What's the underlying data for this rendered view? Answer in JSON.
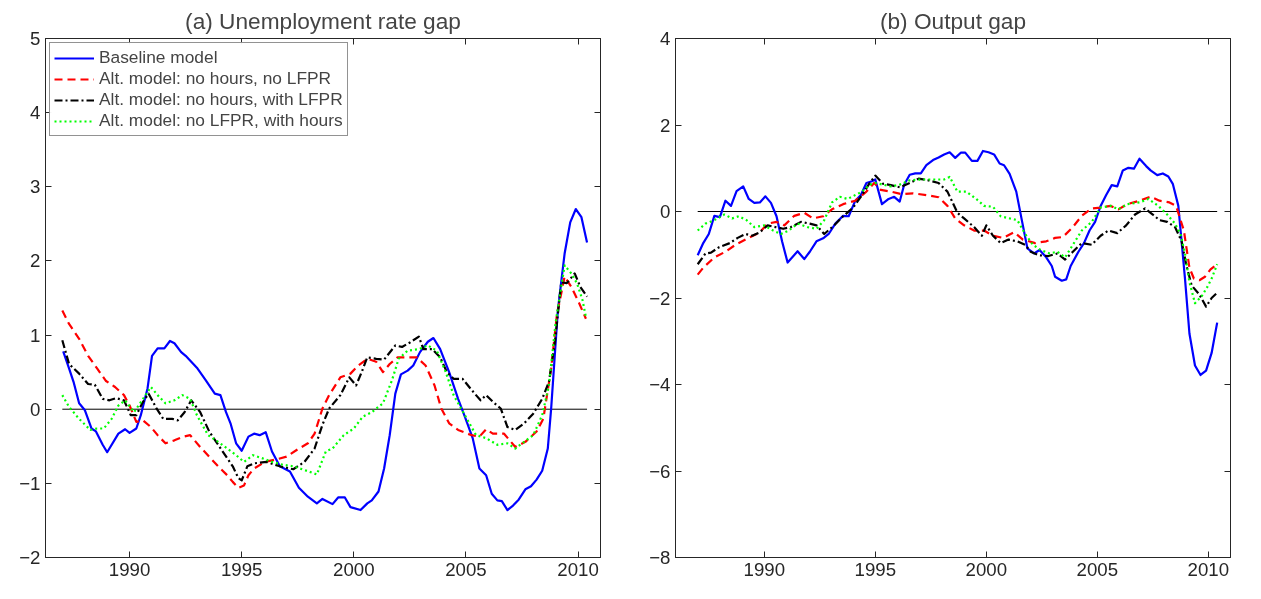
{
  "chart_data": [
    {
      "type": "line",
      "title": "(a) Unemployment rate gap",
      "xlim": [
        1986.25,
        2011
      ],
      "xticks": [
        1990,
        1995,
        2000,
        2005,
        2010
      ],
      "ylim": [
        -2,
        5
      ],
      "yticks": [
        -2,
        -1,
        0,
        1,
        2,
        3,
        4,
        5
      ],
      "grid": false,
      "legend": "top left",
      "ref_lines": [
        {
          "axis": "y",
          "value": 0,
          "color": "#000000"
        }
      ],
      "series": [
        {
          "name": "Baseline model",
          "color": "#0000ff",
          "line_style": "solid",
          "x": [
            1987.04,
            1987.3,
            1987.5,
            1987.75,
            1988.0,
            1988.3,
            1988.5,
            1988.8,
            1989.0,
            1989.5,
            1989.8,
            1990.0,
            1990.3,
            1990.5,
            1990.8,
            1991.0,
            1991.25,
            1991.55,
            1991.8,
            1992.0,
            1992.3,
            1992.5,
            1993.0,
            1993.4,
            1993.8,
            1994.05,
            1994.3,
            1994.5,
            1994.75,
            1995.0,
            1995.3,
            1995.55,
            1995.8,
            1996.07,
            1996.35,
            1996.7,
            1997.15,
            1997.55,
            1997.95,
            1998.35,
            1998.6,
            1999.05,
            1999.3,
            1999.6,
            1999.85,
            2000.3,
            2000.6,
            2000.8,
            2001.1,
            2001.35,
            2001.6,
            2001.85,
            2002.1,
            2002.4,
            2002.65,
            2002.95,
            2003.3,
            2003.55,
            2003.85,
            2004.25,
            2004.65,
            2004.95,
            2005.3,
            2005.6,
            2005.9,
            2006.15,
            2006.4,
            2006.6,
            2006.85,
            2007.1,
            2007.35,
            2007.65,
            2007.9,
            2008.15,
            2008.4,
            2008.65,
            2008.8,
            2009.1,
            2009.4,
            2009.65,
            2009.9,
            2010.15,
            2010.4
          ],
          "values": [
            0.78,
            0.55,
            0.37,
            0.08,
            -0.01,
            -0.26,
            -0.3,
            -0.48,
            -0.58,
            -0.33,
            -0.27,
            -0.32,
            -0.26,
            -0.08,
            0.28,
            0.72,
            0.82,
            0.82,
            0.92,
            0.89,
            0.77,
            0.72,
            0.56,
            0.39,
            0.21,
            0.19,
            -0.04,
            -0.19,
            -0.46,
            -0.56,
            -0.37,
            -0.33,
            -0.35,
            -0.31,
            -0.57,
            -0.77,
            -0.84,
            -1.06,
            -1.18,
            -1.27,
            -1.21,
            -1.28,
            -1.19,
            -1.19,
            -1.32,
            -1.36,
            -1.27,
            -1.23,
            -1.11,
            -0.8,
            -0.35,
            0.21,
            0.47,
            0.52,
            0.59,
            0.77,
            0.91,
            0.96,
            0.81,
            0.5,
            0.14,
            -0.1,
            -0.39,
            -0.8,
            -0.89,
            -1.14,
            -1.23,
            -1.24,
            -1.36,
            -1.3,
            -1.22,
            -1.08,
            -1.04,
            -0.95,
            -0.83,
            -0.53,
            0.01,
            1.34,
            2.1,
            2.52,
            2.7,
            2.59,
            2.25
          ]
        },
        {
          "name": "Alt. model: no hours, no LFPR",
          "color": "#ff0000",
          "line_style": "dashed",
          "x": [
            1987.0,
            1987.3,
            1987.75,
            1988.15,
            1988.55,
            1988.95,
            1989.35,
            1989.75,
            1990.0,
            1990.3,
            1990.6,
            1990.95,
            1991.25,
            1991.6,
            1992.0,
            1992.4,
            1992.7,
            1993.15,
            1993.55,
            1993.95,
            1994.35,
            1994.6,
            1994.85,
            1995.1,
            1995.3,
            1995.55,
            1996.05,
            1996.5,
            1997.0,
            1997.45,
            1997.95,
            1998.25,
            1998.6,
            1998.9,
            1999.4,
            1999.85,
            2000.2,
            2000.6,
            2001.0,
            2001.3,
            2001.6,
            2001.95,
            2002.4,
            2002.8,
            2003.2,
            2003.6,
            2003.9,
            2004.25,
            2004.65,
            2005.25,
            2005.6,
            2005.9,
            2006.2,
            2006.7,
            2007.2,
            2007.65,
            2008.15,
            2008.45,
            2008.8,
            2009.05,
            2009.4,
            2009.7,
            2010.05,
            2010.35
          ],
          "values": [
            1.33,
            1.15,
            0.95,
            0.72,
            0.55,
            0.38,
            0.3,
            0.19,
            0.05,
            -0.17,
            -0.15,
            -0.24,
            -0.35,
            -0.46,
            -0.42,
            -0.37,
            -0.35,
            -0.51,
            -0.64,
            -0.77,
            -0.89,
            -0.98,
            -1.06,
            -1.03,
            -0.89,
            -0.8,
            -0.71,
            -0.68,
            -0.64,
            -0.55,
            -0.46,
            -0.33,
            0.01,
            0.19,
            0.43,
            0.48,
            0.59,
            0.68,
            0.64,
            0.5,
            0.61,
            0.7,
            0.7,
            0.7,
            0.59,
            0.32,
            0.01,
            -0.19,
            -0.28,
            -0.35,
            -0.37,
            -0.27,
            -0.33,
            -0.33,
            -0.51,
            -0.44,
            -0.3,
            -0.13,
            0.55,
            1.26,
            1.79,
            1.65,
            1.43,
            1.22
          ]
        },
        {
          "name": "Alt. model: no hours, with LFPR",
          "color": "#000000",
          "line_style": "dashdot",
          "x": [
            1987.0,
            1987.3,
            1987.75,
            1988.15,
            1988.45,
            1988.8,
            1989.1,
            1989.4,
            1989.75,
            1990.05,
            1990.3,
            1990.6,
            1990.85,
            1991.2,
            1991.5,
            1991.9,
            1992.15,
            1992.45,
            1992.75,
            1993.15,
            1993.55,
            1993.95,
            1994.35,
            1994.6,
            1994.85,
            1995.0,
            1995.25,
            1995.55,
            1996.1,
            1996.7,
            1997.3,
            1997.8,
            1998.25,
            1998.6,
            1998.9,
            1999.4,
            1999.8,
            2000.1,
            2000.35,
            2000.6,
            2001.0,
            2001.35,
            2001.85,
            2002.15,
            2002.5,
            2002.9,
            2003.1,
            2003.5,
            2003.85,
            2004.15,
            2004.45,
            2004.85,
            2005.25,
            2005.65,
            2005.9,
            2006.2,
            2006.55,
            2006.85,
            2007.2,
            2007.6,
            2008.0,
            2008.4,
            2008.7,
            2008.95,
            2009.25,
            2009.5,
            2009.85,
            2010.1,
            2010.4
          ],
          "values": [
            0.93,
            0.61,
            0.48,
            0.34,
            0.33,
            0.14,
            0.12,
            0.15,
            0.12,
            -0.08,
            -0.08,
            0.1,
            0.21,
            0.01,
            -0.13,
            -0.13,
            -0.15,
            -0.04,
            0.12,
            -0.04,
            -0.3,
            -0.48,
            -0.66,
            -0.77,
            -0.93,
            -0.96,
            -0.77,
            -0.73,
            -0.71,
            -0.77,
            -0.81,
            -0.71,
            -0.53,
            -0.21,
            0.01,
            0.19,
            0.43,
            0.32,
            0.5,
            0.7,
            0.68,
            0.67,
            0.86,
            0.84,
            0.9,
            0.98,
            0.81,
            0.81,
            0.7,
            0.5,
            0.41,
            0.41,
            0.26,
            0.12,
            0.19,
            0.1,
            0.01,
            -0.24,
            -0.28,
            -0.19,
            -0.06,
            0.14,
            0.37,
            0.86,
            1.71,
            1.7,
            1.83,
            1.65,
            1.52
          ]
        },
        {
          "name": "Alt. model: no LFPR, with hours",
          "color": "#00ff00",
          "line_style": "dotted",
          "x": [
            1987.0,
            1987.3,
            1987.75,
            1988.25,
            1988.55,
            1988.85,
            1989.2,
            1989.5,
            1989.8,
            1990.2,
            1990.6,
            1990.95,
            1991.25,
            1991.6,
            1992.0,
            1992.35,
            1992.7,
            1993.0,
            1993.5,
            1993.95,
            1994.35,
            1994.75,
            1995.1,
            1995.5,
            1995.9,
            1996.35,
            1996.85,
            1997.3,
            1997.8,
            1998.35,
            1998.75,
            1999.05,
            1999.55,
            2000.0,
            2000.4,
            2000.8,
            2001.3,
            2001.7,
            2002.0,
            2002.4,
            2002.9,
            2003.3,
            2003.7,
            2004.1,
            2004.45,
            2004.95,
            2005.45,
            2005.9,
            2006.4,
            2006.85,
            2007.2,
            2007.6,
            2008.0,
            2008.4,
            2008.7,
            2009.0,
            2009.4,
            2009.7,
            2009.95,
            2010.2,
            2010.35
          ],
          "values": [
            0.19,
            0.03,
            -0.13,
            -0.28,
            -0.26,
            -0.26,
            -0.13,
            0.05,
            0.12,
            -0.04,
            0.14,
            0.3,
            0.19,
            0.08,
            0.12,
            0.19,
            0.14,
            -0.08,
            -0.35,
            -0.44,
            -0.53,
            -0.62,
            -0.71,
            -0.62,
            -0.66,
            -0.71,
            -0.75,
            -0.77,
            -0.82,
            -0.88,
            -0.57,
            -0.53,
            -0.35,
            -0.26,
            -0.1,
            -0.04,
            0.08,
            0.39,
            0.68,
            0.79,
            0.81,
            0.86,
            0.79,
            0.5,
            0.19,
            -0.08,
            -0.35,
            -0.39,
            -0.48,
            -0.46,
            -0.53,
            -0.44,
            -0.35,
            -0.08,
            0.32,
            1.17,
            1.94,
            1.83,
            1.7,
            1.47,
            1.24
          ]
        }
      ]
    },
    {
      "type": "line",
      "title": "(b) Output gap",
      "xlim": [
        1986,
        2011
      ],
      "xticks": [
        1990,
        1995,
        2000,
        2005,
        2010
      ],
      "ylim": [
        -8,
        4
      ],
      "yticks": [
        -8,
        -6,
        -4,
        -2,
        0,
        2,
        4
      ],
      "grid": false,
      "legend": false,
      "ref_lines": [
        {
          "axis": "y",
          "value": 0,
          "color": "#000000"
        }
      ],
      "series": [
        {
          "color": "#0000ff",
          "line_style": "solid",
          "x": [
            1987.0,
            1987.25,
            1987.5,
            1987.75,
            1988.0,
            1988.25,
            1988.5,
            1988.75,
            1989.05,
            1989.3,
            1989.55,
            1989.8,
            1990.05,
            1990.3,
            1990.55,
            1990.8,
            1991.05,
            1991.5,
            1991.8,
            1992.05,
            1992.35,
            1992.65,
            1992.9,
            1993.2,
            1993.55,
            1993.8,
            1994.1,
            1994.35,
            1994.6,
            1994.85,
            1995.0,
            1995.3,
            1995.6,
            1995.85,
            1996.1,
            1996.3,
            1996.55,
            1996.8,
            1997.05,
            1997.3,
            1997.6,
            1997.85,
            1998.1,
            1998.35,
            1998.6,
            1998.85,
            1999.05,
            1999.35,
            1999.6,
            1999.85,
            2000.1,
            2000.35,
            2000.6,
            2000.8,
            2001.05,
            2001.35,
            2001.6,
            2001.85,
            2002.15,
            2002.4,
            2002.7,
            2002.95,
            2003.1,
            2003.4,
            2003.6,
            2003.8,
            2004.15,
            2004.4,
            2004.65,
            2004.9,
            2005.15,
            2005.4,
            2005.65,
            2005.9,
            2006.15,
            2006.4,
            2006.65,
            2006.9,
            2007.2,
            2007.4,
            2007.7,
            2007.95,
            2008.2,
            2008.4,
            2008.65,
            2008.95,
            2009.15,
            2009.4,
            2009.65,
            2009.9,
            2010.15,
            2010.4
          ],
          "values": [
            -1.01,
            -0.73,
            -0.52,
            -0.1,
            -0.13,
            0.25,
            0.13,
            0.47,
            0.58,
            0.29,
            0.2,
            0.21,
            0.35,
            0.2,
            -0.11,
            -0.69,
            -1.18,
            -0.92,
            -1.1,
            -0.93,
            -0.69,
            -0.62,
            -0.52,
            -0.28,
            -0.1,
            -0.11,
            0.25,
            0.38,
            0.66,
            0.7,
            0.74,
            0.17,
            0.29,
            0.34,
            0.23,
            0.62,
            0.85,
            0.88,
            0.88,
            1.07,
            1.19,
            1.25,
            1.32,
            1.37,
            1.24,
            1.36,
            1.36,
            1.17,
            1.17,
            1.4,
            1.37,
            1.32,
            1.11,
            1.07,
            0.87,
            0.46,
            -0.2,
            -0.85,
            -0.97,
            -0.89,
            -1.06,
            -1.26,
            -1.51,
            -1.6,
            -1.57,
            -1.26,
            -0.93,
            -0.73,
            -0.44,
            -0.24,
            0.13,
            0.38,
            0.61,
            0.58,
            0.95,
            1.01,
            0.99,
            1.22,
            1.05,
            0.95,
            0.84,
            0.88,
            0.81,
            0.64,
            0.13,
            -1.55,
            -2.82,
            -3.56,
            -3.78,
            -3.68,
            -3.27,
            -2.57
          ]
        },
        {
          "color": "#ff0000",
          "line_style": "dashed",
          "x": [
            1987.0,
            1987.25,
            1987.75,
            1988.25,
            1988.7,
            1989.3,
            1989.8,
            1990.15,
            1990.55,
            1990.9,
            1991.35,
            1991.8,
            1992.2,
            1992.65,
            1993.05,
            1993.55,
            1994.1,
            1994.6,
            1994.95,
            1995.25,
            1995.7,
            1996.2,
            1996.7,
            1997.3,
            1997.85,
            1998.25,
            1998.6,
            1999.0,
            1999.45,
            1999.9,
            2000.3,
            2000.75,
            2001.25,
            2001.65,
            2002.2,
            2002.7,
            2003.1,
            2003.45,
            2003.9,
            2004.3,
            2004.75,
            2005.15,
            2005.6,
            2005.95,
            2006.35,
            2006.9,
            2007.4,
            2007.8,
            2008.25,
            2008.55,
            2008.9,
            2009.15,
            2009.35,
            2009.6,
            2009.85,
            2010.1,
            2010.4
          ],
          "values": [
            -1.46,
            -1.3,
            -1.06,
            -0.93,
            -0.77,
            -0.61,
            -0.48,
            -0.28,
            -0.24,
            -0.32,
            -0.1,
            -0.03,
            -0.16,
            -0.11,
            0.05,
            0.17,
            0.25,
            0.46,
            0.66,
            0.5,
            0.46,
            0.4,
            0.42,
            0.38,
            0.33,
            0.13,
            -0.16,
            -0.32,
            -0.44,
            -0.44,
            -0.56,
            -0.61,
            -0.48,
            -0.65,
            -0.73,
            -0.69,
            -0.61,
            -0.59,
            -0.36,
            -0.1,
            0.07,
            0.09,
            0.13,
            0.05,
            0.17,
            0.25,
            0.34,
            0.25,
            0.21,
            0.13,
            -0.44,
            -1.3,
            -1.55,
            -1.59,
            -1.51,
            -1.34,
            -1.22
          ]
        },
        {
          "color": "#000000",
          "line_style": "dashdot",
          "x": [
            1987.0,
            1987.35,
            1987.6,
            1987.95,
            1988.45,
            1988.8,
            1989.15,
            1989.45,
            1989.8,
            1990.15,
            1990.5,
            1990.85,
            1991.2,
            1991.65,
            1992.05,
            1992.35,
            1992.7,
            1993.15,
            1993.55,
            1994.0,
            1994.4,
            1994.75,
            1995.0,
            1995.35,
            1995.7,
            1996.1,
            1996.55,
            1996.95,
            1997.4,
            1997.85,
            1998.25,
            1998.7,
            1999.0,
            1999.45,
            1999.8,
            2000.0,
            2000.3,
            2000.65,
            2001.0,
            2001.4,
            2001.75,
            2002.0,
            2002.35,
            2002.8,
            2003.2,
            2003.55,
            2003.9,
            2004.3,
            2004.75,
            2005.15,
            2005.5,
            2005.9,
            2006.3,
            2006.7,
            2007.15,
            2007.5,
            2007.8,
            2008.15,
            2008.5,
            2008.8,
            2009.0,
            2009.25,
            2009.6,
            2009.9,
            2010.15,
            2010.4
          ],
          "values": [
            -1.22,
            -0.97,
            -0.95,
            -0.83,
            -0.73,
            -0.61,
            -0.52,
            -0.56,
            -0.48,
            -0.32,
            -0.36,
            -0.4,
            -0.36,
            -0.24,
            -0.28,
            -0.32,
            -0.52,
            -0.32,
            -0.11,
            0.09,
            0.38,
            0.66,
            0.83,
            0.64,
            0.61,
            0.56,
            0.66,
            0.76,
            0.72,
            0.66,
            0.46,
            -0.03,
            -0.16,
            -0.36,
            -0.56,
            -0.32,
            -0.56,
            -0.73,
            -0.65,
            -0.69,
            -0.77,
            -0.93,
            -1.01,
            -1.03,
            -0.97,
            -1.11,
            -0.93,
            -0.73,
            -0.77,
            -0.56,
            -0.44,
            -0.5,
            -0.32,
            -0.07,
            0.07,
            -0.07,
            -0.2,
            -0.24,
            -0.36,
            -0.69,
            -1.22,
            -1.71,
            -1.92,
            -2.2,
            -2.0,
            -1.88
          ]
        },
        {
          "color": "#00ff00",
          "line_style": "dotted",
          "x": [
            1987.0,
            1987.35,
            1987.75,
            1988.2,
            1988.55,
            1988.85,
            1989.2,
            1989.55,
            1990.0,
            1990.4,
            1990.75,
            1991.1,
            1991.5,
            1991.95,
            1992.35,
            1992.7,
            1993.05,
            1993.4,
            1993.75,
            1994.1,
            1994.4,
            1994.75,
            1995.0,
            1995.35,
            1995.7,
            1996.1,
            1996.55,
            1997.05,
            1997.6,
            1998.1,
            1998.35,
            1998.7,
            1999.1,
            1999.55,
            1999.9,
            2000.3,
            2000.65,
            2001.05,
            2001.4,
            2001.75,
            2002.1,
            2002.45,
            2002.85,
            2003.2,
            2003.55,
            2003.9,
            2004.3,
            2004.75,
            2005.15,
            2005.6,
            2005.95,
            2006.35,
            2006.9,
            2007.3,
            2007.75,
            2008.15,
            2008.5,
            2008.75,
            2008.95,
            2009.15,
            2009.4,
            2009.7,
            2009.95,
            2010.15,
            2010.4
          ],
          "values": [
            -0.44,
            -0.28,
            -0.2,
            -0.07,
            -0.16,
            -0.11,
            -0.2,
            -0.36,
            -0.32,
            -0.44,
            -0.52,
            -0.44,
            -0.28,
            -0.36,
            -0.4,
            -0.2,
            0.21,
            0.34,
            0.29,
            0.38,
            0.46,
            0.62,
            0.66,
            0.62,
            0.58,
            0.62,
            0.72,
            0.74,
            0.74,
            0.74,
            0.8,
            0.46,
            0.46,
            0.29,
            0.13,
            0.11,
            -0.11,
            -0.16,
            -0.2,
            -0.52,
            -0.77,
            -0.89,
            -0.97,
            -0.93,
            -1.06,
            -0.77,
            -0.44,
            -0.24,
            0.09,
            0.13,
            0.05,
            0.17,
            0.21,
            0.29,
            0.13,
            -0.07,
            -0.28,
            -0.52,
            -0.98,
            -1.63,
            -2.12,
            -1.96,
            -1.75,
            -1.55,
            -1.22
          ]
        }
      ]
    }
  ]
}
